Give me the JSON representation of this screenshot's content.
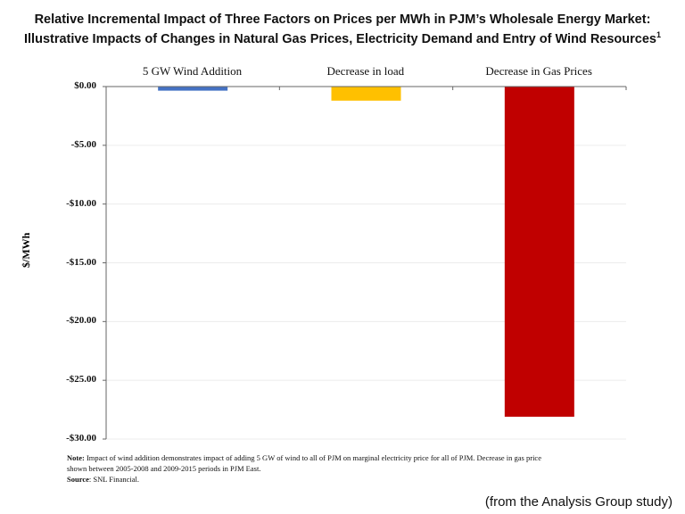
{
  "chart_data": {
    "type": "bar",
    "title_line1": "Relative Incremental Impact of Three Factors on Prices per MWh in PJM’s Wholesale Energy Market:",
    "title_line2": "Illustrative Impacts of Changes in Natural Gas Prices, Electricity Demand and Entry of Wind Resources",
    "title_superscript": "1",
    "categories": [
      "5 GW Wind Addition",
      "Decrease in load",
      "Decrease in Gas Prices"
    ],
    "values": [
      -0.35,
      -1.2,
      -28.1
    ],
    "colors": [
      "#4472C4",
      "#FFC000",
      "#C00000"
    ],
    "xlabel": "",
    "ylabel": "$/MWh",
    "ylim": [
      -30,
      0
    ],
    "yticks": [
      "$0.00",
      "-$5.00",
      "-$10.00",
      "-$15.00",
      "-$20.00",
      "-$25.00",
      "-$30.00"
    ],
    "ytick_values": [
      0,
      -5,
      -10,
      -15,
      -20,
      -25,
      -30
    ],
    "category_labels_position": "top",
    "grid": true,
    "legend": "none"
  },
  "notes": {
    "note_label": "Note:",
    "note_line1": " Impact of wind addition demonstrates impact of adding 5 GW of wind to all of PJM on marginal electricity price for all of PJM. Decrease in gas price",
    "note_line2": "shown between 2005-2008  and 2009-2015  periods in PJM East.",
    "source_label": "Source",
    "source_text": ": SNL Financial."
  },
  "credit": "(from the Analysis Group study)"
}
